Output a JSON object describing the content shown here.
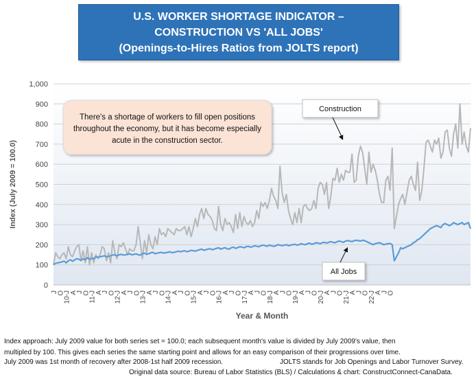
{
  "title": {
    "line1": "U.S. WORKER SHORTAGE INDICATOR –",
    "line2": "CONSTRUCTION VS 'ALL JOBS'",
    "line3": "(Openings-to-Hires Ratios from JOLTS report)"
  },
  "annotation": {
    "text": [
      "There's a shortage of workers to fill open positions",
      "throughout the economy, but it has become especially",
      "acute in the construction sector."
    ]
  },
  "footnotes": {
    "line1": "Index approach: July 2009 value for both series set = 100.0; each subsequent month's value is divided by July 2009's value, then",
    "line2": "multipled by 100. This gives each series the same starting point and allows for an easy comparison of their progressions over time.",
    "line3a": "July 2009 was 1st month of recovery after 2008-1st half 2009 recession.",
    "line3b": "JOLTS stands for Job Openings and Labor Turnover Survey.",
    "line4": "Original data source: Bureau of Labor Statistics (BLS) / Calculations & chart: ConstructConnect-CanaData."
  },
  "chart_data": {
    "type": "line",
    "title": "U.S. WORKER SHORTAGE INDICATOR – CONSTRUCTION VS 'ALL JOBS' (Openings-to-Hires Ratios from JOLTS report)",
    "xlabel": "Year & Month",
    "ylabel": "Index (July 2009 = 100.0)",
    "ylim": [
      0,
      1000
    ],
    "yticks": [
      0,
      100,
      200,
      300,
      400,
      500,
      600,
      700,
      800,
      900,
      1000
    ],
    "ytick_labels": [
      "0",
      "100",
      "200",
      "300",
      "400",
      "500",
      "600",
      "700",
      "800",
      "900",
      "1,000"
    ],
    "grid": true,
    "x_start": "2009-07",
    "x_end": "2022-10",
    "xtick_labels": [
      "J",
      "O",
      "10-J",
      "A",
      "J",
      "O",
      "11-J",
      "A",
      "J",
      "O",
      "12-J",
      "A",
      "J",
      "O",
      "13-J",
      "A",
      "J",
      "O",
      "14-J",
      "A",
      "J",
      "O",
      "15-J",
      "A",
      "J",
      "O",
      "16-J",
      "A",
      "J",
      "O",
      "17-J",
      "A",
      "J",
      "O",
      "18-J",
      "A",
      "J",
      "O",
      "19-J",
      "A",
      "J",
      "O",
      "20-J",
      "A",
      "J",
      "O",
      "21-J",
      "A",
      "J",
      "O",
      "22-J",
      "A",
      "J",
      "O"
    ],
    "series": [
      {
        "name": "Construction",
        "color": "#b7b7b7",
        "values": [
          100,
          160,
          140,
          130,
          150,
          160,
          130,
          190,
          150,
          140,
          170,
          190,
          200,
          120,
          170,
          110,
          190,
          100,
          160,
          110,
          150,
          130,
          150,
          190,
          180,
          120,
          160,
          110,
          220,
          160,
          130,
          200,
          190,
          210,
          180,
          150,
          180,
          170,
          170,
          200,
          290,
          210,
          130,
          220,
          160,
          250,
          200,
          180,
          240,
          200,
          280,
          250,
          260,
          240,
          280,
          270,
          260,
          250,
          280,
          270,
          270,
          280,
          290,
          250,
          290,
          240,
          280,
          330,
          290,
          350,
          380,
          330,
          380,
          350,
          340,
          320,
          280,
          270,
          390,
          300,
          270,
          330,
          300,
          310,
          290,
          260,
          350,
          280,
          360,
          290,
          340,
          310,
          300,
          320,
          290,
          310,
          370,
          330,
          410,
          390,
          410,
          380,
          420,
          480,
          440,
          420,
          380,
          590,
          460,
          410,
          450,
          370,
          330,
          300,
          360,
          310,
          380,
          310,
          390,
          400,
          380,
          370,
          380,
          420,
          380,
          480,
          510,
          500,
          450,
          510,
          380,
          440,
          530,
          520,
          580,
          510,
          550,
          520,
          570,
          560,
          560,
          650,
          510,
          520,
          640,
          690,
          660,
          580,
          500,
          660,
          560,
          600,
          570,
          520,
          450,
          410,
          410,
          520,
          540,
          470,
          680,
          280,
          340,
          400,
          430,
          450,
          400,
          460,
          520,
          540,
          500,
          470,
          610,
          420,
          470,
          580,
          710,
          720,
          690,
          660,
          720,
          700,
          730,
          630,
          660,
          760,
          770,
          680,
          640,
          750,
          800,
          680,
          900,
          700,
          760,
          690,
          660,
          780
        ],
        "labels": [
          {
            "text": "Construction"
          }
        ]
      },
      {
        "name": "All Jobs",
        "color": "#5b9bd5",
        "values": [
          100,
          108,
          110,
          112,
          115,
          118,
          110,
          120,
          125,
          118,
          125,
          130,
          128,
          122,
          130,
          125,
          135,
          128,
          132,
          130,
          140,
          138,
          140,
          142,
          145,
          140,
          142,
          145,
          150,
          148,
          145,
          150,
          152,
          148,
          150,
          152,
          155,
          150,
          152,
          155,
          150,
          148,
          155,
          158,
          152,
          155,
          160,
          162,
          155,
          158,
          160,
          162,
          158,
          160,
          162,
          165,
          160,
          162,
          165,
          168,
          165,
          168,
          170,
          165,
          168,
          172,
          170,
          168,
          172,
          175,
          178,
          172,
          175,
          178,
          180,
          175,
          178,
          182,
          185,
          178,
          182,
          185,
          180,
          178,
          185,
          188,
          182,
          185,
          190,
          188,
          185,
          190,
          192,
          188,
          190,
          195,
          192,
          190,
          195,
          198,
          195,
          192,
          198,
          195,
          192,
          195,
          200,
          198,
          195,
          198,
          200,
          195,
          198,
          200,
          202,
          198,
          200,
          205,
          202,
          200,
          205,
          208,
          202,
          205,
          210,
          208,
          205,
          210,
          212,
          208,
          212,
          215,
          212,
          210,
          215,
          218,
          215,
          212,
          218,
          220,
          218,
          215,
          220,
          222,
          220,
          218,
          222,
          220,
          215,
          210,
          205,
          200,
          205,
          208,
          210,
          205,
          200,
          203,
          205,
          206,
          200,
          120,
          140,
          160,
          185,
          180,
          185,
          190,
          195,
          200,
          210,
          215,
          225,
          230,
          240,
          250,
          260,
          270,
          280,
          285,
          290,
          295,
          290,
          285,
          300,
          305,
          300,
          295,
          300,
          310,
          305,
          300,
          305,
          310,
          300,
          305,
          310,
          280
        ]
      }
    ],
    "callouts": [
      {
        "text": "Construction"
      },
      {
        "text": "All Jobs"
      }
    ]
  }
}
